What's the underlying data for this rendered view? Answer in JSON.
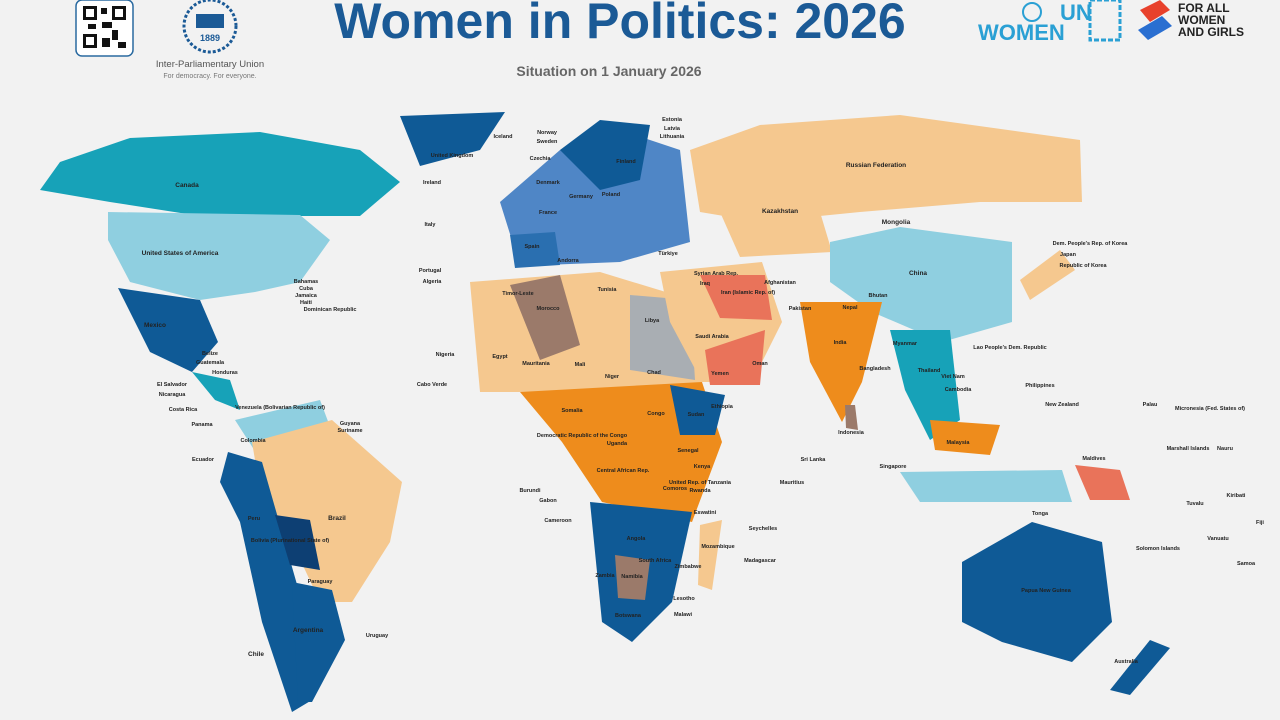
{
  "header": {
    "title": "Women in Politics: 2026",
    "subtitle": "Situation on 1 January 2026",
    "ipu_year": "1889",
    "ipu_name": "Inter-Parliamentary Union",
    "ipu_tagline": "For democracy. For everyone.",
    "un": "UN",
    "women": "WOMEN",
    "for_all": "FOR ALL",
    "women_and_girls": "WOMEN",
    "and_girls": "AND GIRLS"
  },
  "map": {
    "countries": [
      "Canada",
      "United States of America",
      "Mexico",
      "Brazil",
      "Argentina",
      "Chile",
      "Peru",
      "Bolivia (Plurinational State of)",
      "Paraguay",
      "Uruguay",
      "Colombia",
      "Ecuador",
      "Venezuela (Bolivarian Republic of)",
      "Guyana",
      "Suriname",
      "Bahamas",
      "Cuba",
      "Jamaica",
      "Haiti",
      "Dominican Republic",
      "Belize",
      "Guatemala",
      "Honduras",
      "El Salvador",
      "Nicaragua",
      "Costa Rica",
      "Panama",
      "Iceland",
      "Norway",
      "Sweden",
      "Finland",
      "United Kingdom",
      "Ireland",
      "Denmark",
      "Germany",
      "Poland",
      "France",
      "Spain",
      "Portugal",
      "Andorra",
      "Italy",
      "Czechia",
      "Estonia",
      "Latvia",
      "Lithuania",
      "Russian Federation",
      "Kazakhstan",
      "Mongolia",
      "China",
      "Japan",
      "Republic of Korea",
      "Dem. People's Rep. of Korea",
      "India",
      "Nepal",
      "Bhutan",
      "Bangladesh",
      "Pakistan",
      "Afghanistan",
      "Iran (Islamic Rep. of)",
      "Saudi Arabia",
      "Yemen",
      "Oman",
      "Türkiye",
      "Syrian Arab Rep.",
      "Iraq",
      "Myanmar",
      "Thailand",
      "Viet Nam",
      "Cambodia",
      "Lao People's Dem. Republic",
      "Philippines",
      "Malaysia",
      "Singapore",
      "Indonesia",
      "Sri Lanka",
      "Maldives",
      "Papua New Guinea",
      "Australia",
      "New Zealand",
      "Palau",
      "Micronesia (Fed. States of)",
      "Marshall Islands",
      "Nauru",
      "Kiribati",
      "Tuvalu",
      "Solomon Islands",
      "Vanuatu",
      "Fiji",
      "Samoa",
      "Tonga",
      "Timor-Leste",
      "Morocco",
      "Algeria",
      "Tunisia",
      "Libya",
      "Egypt",
      "Mauritania",
      "Mali",
      "Niger",
      "Chad",
      "Sudan",
      "Ethiopia",
      "Somalia",
      "Nigeria",
      "Cabo Verde",
      "Senegal",
      "Kenya",
      "Uganda",
      "Central African Rep.",
      "Democratic Republic of the Congo",
      "Cameroon",
      "Angola",
      "Zambia",
      "Namibia",
      "Botswana",
      "South Africa",
      "Zimbabwe",
      "Mozambique",
      "Madagascar",
      "Mauritius",
      "Seychelles",
      "Malawi",
      "Lesotho",
      "Eswatini",
      "Comoros",
      "United Rep. of Tanzania",
      "Rwanda",
      "Burundi",
      "Gabon",
      "Congo",
      "South Sudan"
    ]
  }
}
